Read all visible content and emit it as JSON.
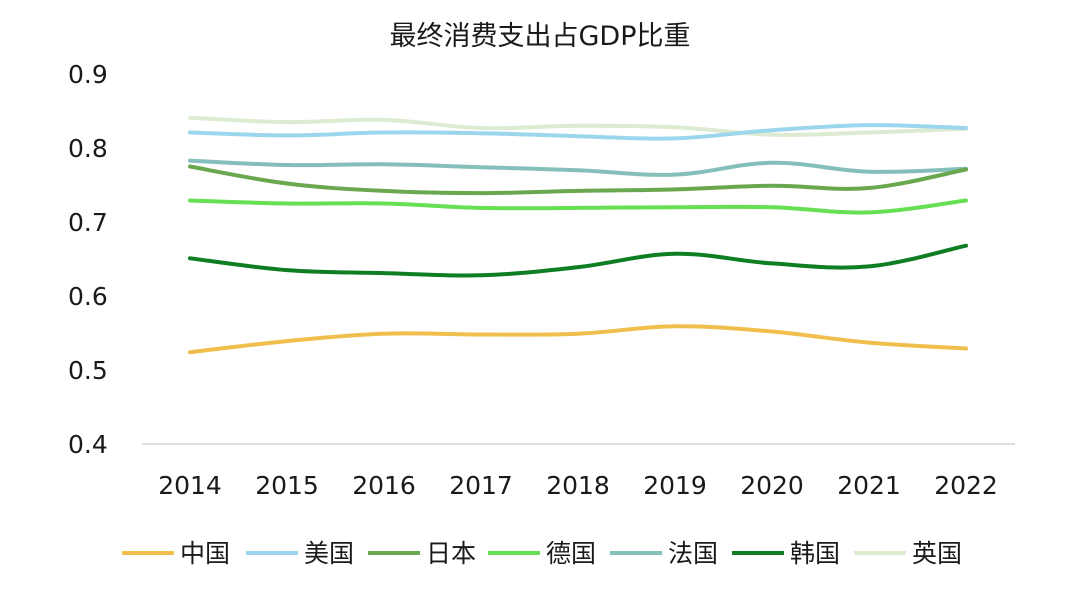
{
  "chart_data": {
    "type": "line",
    "title": "最终消费支出占GDP比重",
    "xlabel": "",
    "ylabel": "",
    "ylim": [
      0.4,
      0.9
    ],
    "yticks": [
      "0.9",
      "0.8",
      "0.7",
      "0.6",
      "0.5",
      "0.4"
    ],
    "grid": false,
    "legend_position": "bottom",
    "categories": [
      "2014",
      "2015",
      "2016",
      "2017",
      "2018",
      "2019",
      "2020",
      "2021",
      "2022"
    ],
    "series": [
      {
        "name": "中国",
        "color": "#f0be4c",
        "values": [
          0.524,
          0.539,
          0.549,
          0.548,
          0.549,
          0.559,
          0.552,
          0.537,
          0.529
        ]
      },
      {
        "name": "美国",
        "color": "#9bd6ec",
        "values": [
          0.821,
          0.817,
          0.821,
          0.82,
          0.816,
          0.813,
          0.824,
          0.831,
          0.827
        ]
      },
      {
        "name": "日本",
        "color": "#6aa84f",
        "values": [
          0.775,
          0.752,
          0.742,
          0.739,
          0.742,
          0.744,
          0.749,
          0.746,
          0.771
        ]
      },
      {
        "name": "德国",
        "color": "#66e052",
        "values": [
          0.729,
          0.725,
          0.725,
          0.719,
          0.719,
          0.72,
          0.72,
          0.713,
          0.729
        ]
      },
      {
        "name": "法国",
        "color": "#85bfbc",
        "values": [
          0.783,
          0.777,
          0.778,
          0.774,
          0.77,
          0.764,
          0.78,
          0.768,
          0.772
        ]
      },
      {
        "name": "韩国",
        "color": "#0f7d23",
        "values": [
          0.651,
          0.635,
          0.631,
          0.628,
          0.639,
          0.657,
          0.644,
          0.64,
          0.668
        ]
      },
      {
        "name": "英国",
        "color": "#dcebd2",
        "values": [
          0.841,
          0.835,
          0.838,
          0.827,
          0.83,
          0.828,
          0.818,
          0.821,
          0.826
        ]
      }
    ]
  }
}
